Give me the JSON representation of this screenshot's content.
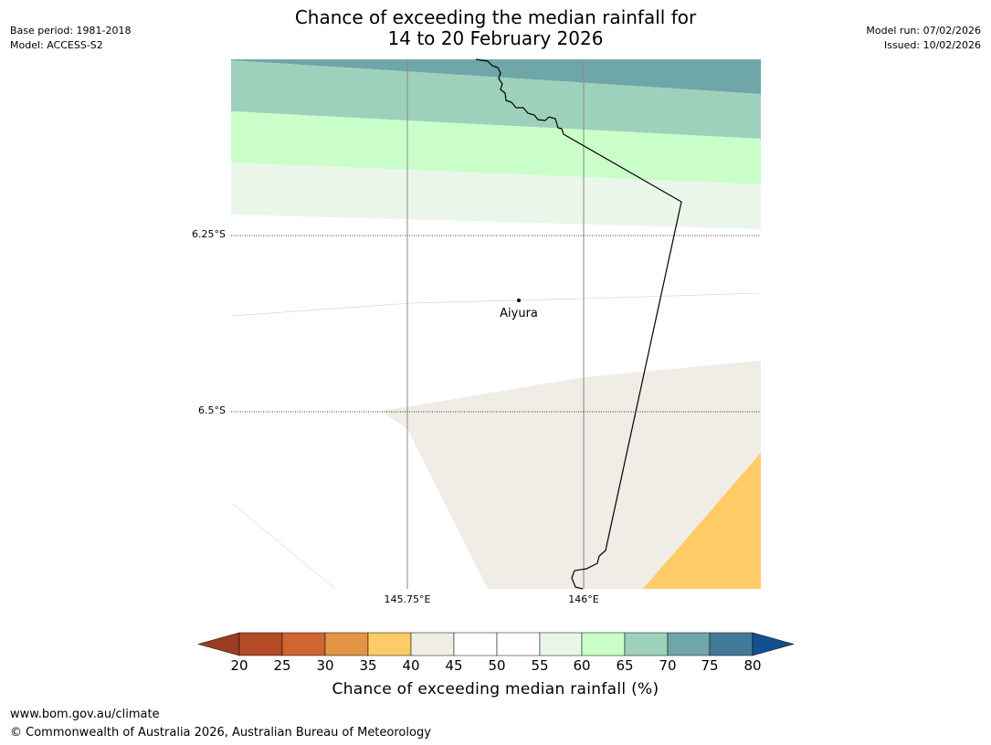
{
  "header": {
    "title_line1": "Chance of exceeding the median rainfall for",
    "title_line2": "14 to 20 February 2026",
    "base_period": "Base period: 1981-2018",
    "model": "Model: ACCESS-S2",
    "model_run": "Model run: 07/02/2026",
    "issued": "Issued: 10/02/2026"
  },
  "map": {
    "lat_labels": [
      "6.25°S",
      "6.5°S"
    ],
    "lon_labels": [
      "145.75°E",
      "146°E"
    ],
    "place": {
      "name": "Aiyura"
    }
  },
  "colorbar": {
    "title": "Chance of exceeding median rainfall (%)",
    "ticks": [
      "20",
      "25",
      "30",
      "35",
      "40",
      "45",
      "50",
      "55",
      "60",
      "65",
      "70",
      "75",
      "80"
    ],
    "colors": [
      "#9c3a22",
      "#b44a26",
      "#cf6533",
      "#e39545",
      "#fecb67",
      "#f0ece6",
      "#ffffff",
      "#ffffff",
      "#eaf6ea",
      "#caffca",
      "#9ed1bb",
      "#6fa6a8",
      "#427a98",
      "#13508f"
    ]
  },
  "footer": {
    "url": "www.bom.gov.au/climate",
    "copyright": "© Commonwealth of Australia 2026, Australian Bureau of Meteorology"
  }
}
